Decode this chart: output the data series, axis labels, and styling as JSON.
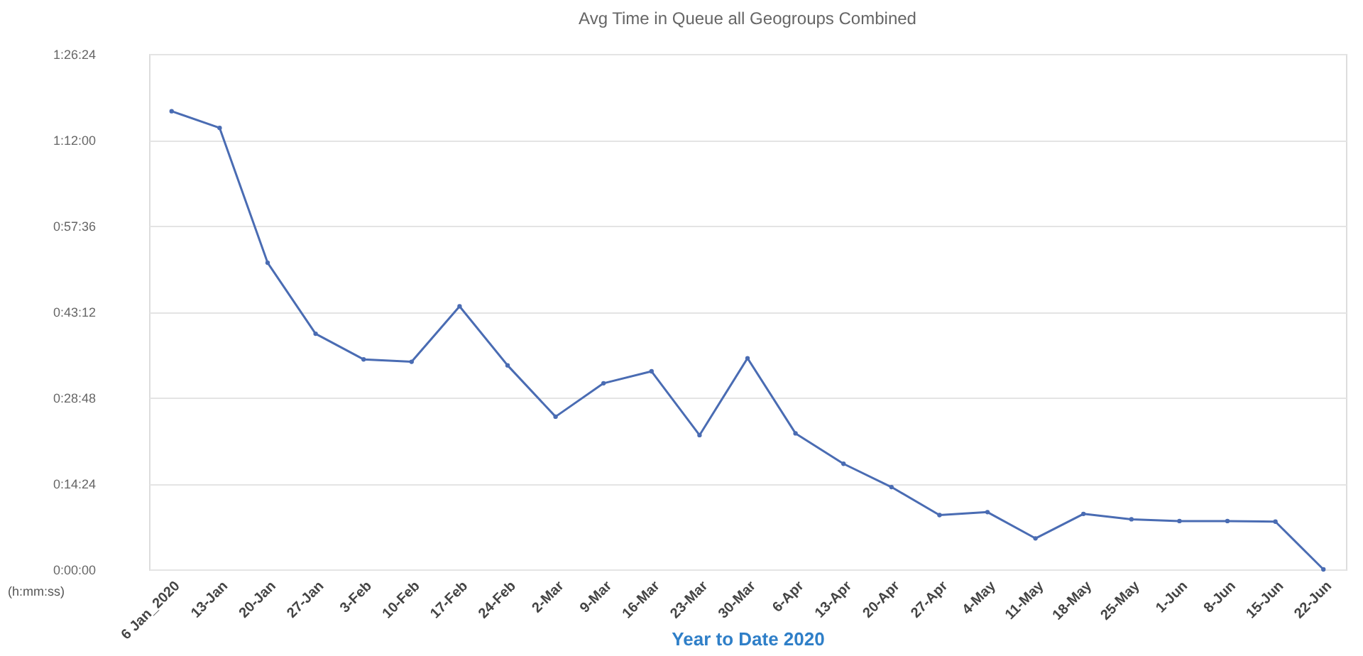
{
  "chart_data": {
    "type": "line",
    "title": "Avg Time in Queue all Geogroups Combined",
    "xlabel": "Year to Date 2020",
    "ylabel": "(h:mm:ss)",
    "categories": [
      "6 Jan_2020",
      "13-Jan",
      "20-Jan",
      "27-Jan",
      "3-Feb",
      "10-Feb",
      "17-Feb",
      "24-Feb",
      "2-Mar",
      "9-Mar",
      "16-Mar",
      "23-Mar",
      "30-Mar",
      "6-Apr",
      "13-Apr",
      "20-Apr",
      "27-Apr",
      "4-May",
      "11-May",
      "18-May",
      "25-May",
      "1-Jun",
      "8-Jun",
      "15-Jun",
      "22-Jun"
    ],
    "series": [
      {
        "color": "#4a6cb3",
        "values": [
          76.8,
          74.0,
          51.4,
          39.5,
          35.2,
          34.8,
          44.1,
          34.2,
          25.6,
          31.2,
          33.2,
          22.5,
          35.4,
          22.8,
          17.7,
          13.8,
          9.1,
          9.6,
          5.2,
          9.3,
          8.4,
          8.1,
          8.1,
          8.0,
          0
        ]
      }
    ],
    "ylim": [
      0,
      86.4
    ],
    "yticks": [
      {
        "value": 0,
        "label": "0:00:00"
      },
      {
        "value": 14.4,
        "label": "0:14:24"
      },
      {
        "value": 28.8,
        "label": "0:28:48"
      },
      {
        "value": 43.2,
        "label": "0:43:12"
      },
      {
        "value": 57.6,
        "label": "0:57:36"
      },
      {
        "value": 72,
        "label": "1:12:00"
      },
      {
        "value": 86.4,
        "label": "1:26:24"
      }
    ],
    "grid": "y",
    "marker": "circle",
    "line_style": "solid",
    "legend": false
  }
}
